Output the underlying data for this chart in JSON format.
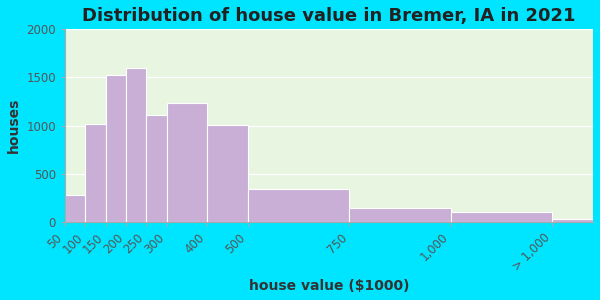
{
  "title": "Distribution of house value in Bremer, IA in 2021",
  "xlabel": "house value ($1000)",
  "ylabel": "houses",
  "bin_edges": [
    50,
    100,
    150,
    200,
    250,
    300,
    400,
    500,
    750,
    1000,
    1250
  ],
  "bar_values": [
    280,
    1020,
    1530,
    1600,
    1110,
    1240,
    1010,
    340,
    150,
    100,
    30
  ],
  "tick_positions": [
    50,
    100,
    150,
    200,
    250,
    300,
    400,
    500,
    750,
    1000,
    1250
  ],
  "tick_labels": [
    "50",
    "100",
    "150",
    "200",
    "250",
    "300",
    "400",
    "500",
    "750",
    "1,000",
    "> 1,000"
  ],
  "bar_color": "#c9aed6",
  "bar_edge_color": "#ffffff",
  "ylim": [
    0,
    2000
  ],
  "yticks": [
    0,
    500,
    1000,
    1500,
    2000
  ],
  "xlim": [
    50,
    1350
  ],
  "bg_outer": "#00e5ff",
  "bg_plot": "#e8f5e0",
  "title_fontsize": 13,
  "label_fontsize": 10,
  "tick_fontsize": 8.5
}
